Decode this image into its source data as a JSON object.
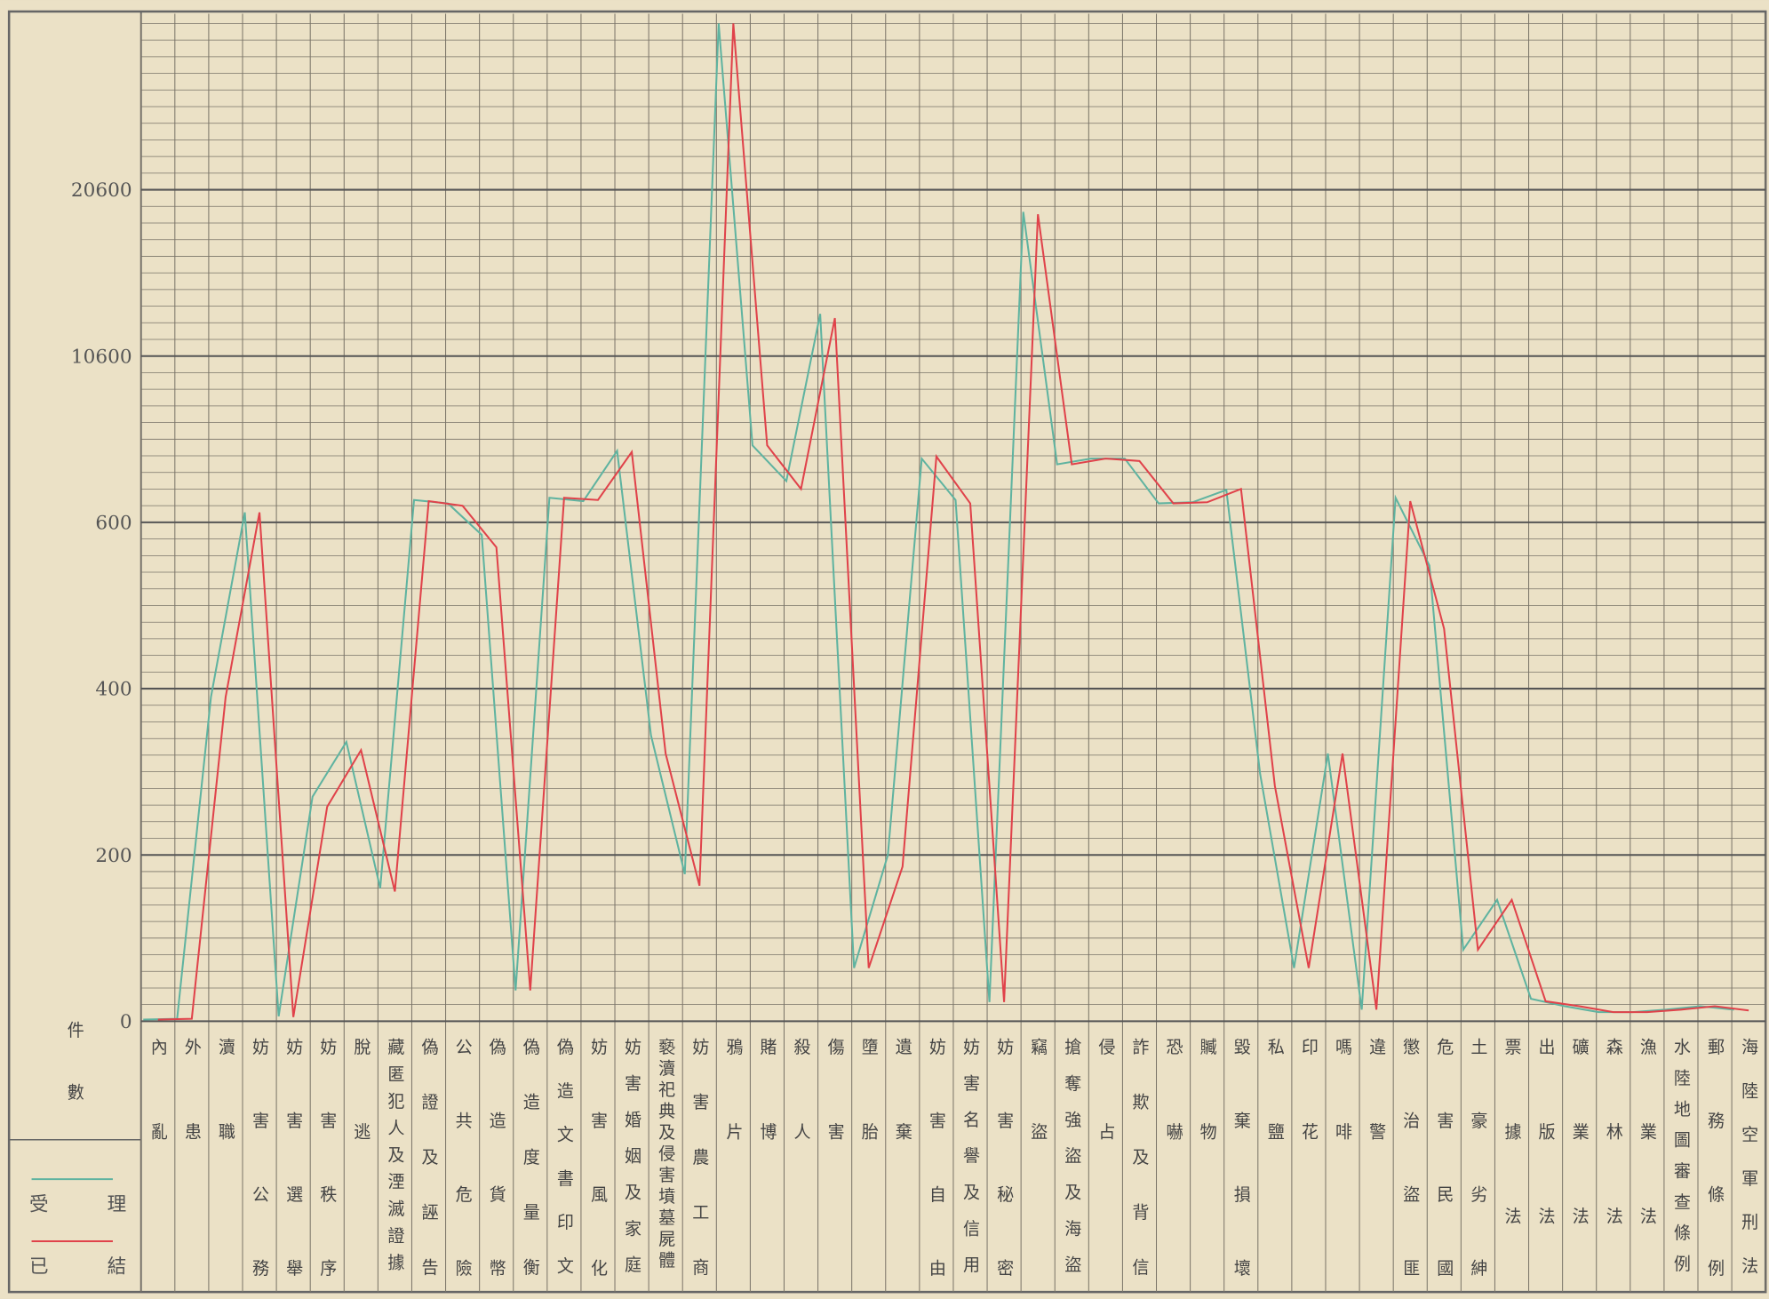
{
  "chart_data": {
    "type": "line",
    "y_label": "件數",
    "categories": [
      "內亂",
      "外患",
      "瀆職",
      "妨害公務",
      "妨害選舉",
      "妨害秩序",
      "脫逃",
      "藏匿犯人及湮滅證據",
      "偽證及誣告",
      "公共危險",
      "偽造貨幣",
      "偽造度量衡",
      "偽造文書印文",
      "妨害風化",
      "妨害婚姻及家庭",
      "褻瀆祀典及侵害墳墓屍體",
      "妨害農工商",
      "鴉片",
      "賭博",
      "殺人",
      "傷害",
      "墮胎",
      "遺棄",
      "妨害自由",
      "妨害名譽及信用",
      "妨害秘密",
      "竊盜",
      "搶奪強盜及海盜",
      "侵占",
      "詐欺及背信",
      "恐嚇",
      "贓物",
      "毀棄損壞",
      "私鹽",
      "印花",
      "嗎啡",
      "違警",
      "懲治盜匪",
      "危害民國",
      "土豪劣紳",
      "票據法",
      "出版法",
      "礦業法",
      "森林法",
      "漁業法",
      "水陸地圖審查條例",
      "郵務條例",
      "海陸空軍刑法"
    ],
    "series": [
      {
        "name": "受理",
        "color": "#5fb3a0",
        "values": [
          2,
          3,
          390,
          1200,
          6,
          270,
          336,
          160,
          1940,
          1740,
          585,
          37,
          2080,
          1875,
          4900,
          344,
          177,
          30600,
          5230,
          3080,
          13140,
          64,
          200,
          4430,
          1940,
          23,
          19270,
          4090,
          4430,
          4430,
          1740,
          1810,
          2550,
          297,
          64,
          322,
          14,
          2080,
          548,
          86,
          146,
          27,
          18,
          11,
          11,
          14,
          18,
          14
        ]
      },
      {
        "name": "已結",
        "color": "#e0424a",
        "values": [
          2,
          3,
          390,
          1200,
          5,
          258,
          326,
          156,
          1875,
          1600,
          570,
          37,
          2080,
          1940,
          4830,
          322,
          163,
          30600,
          5230,
          2610,
          12880,
          64,
          186,
          4560,
          1740,
          23,
          19130,
          4090,
          4430,
          4290,
          1740,
          1810,
          2610,
          283,
          64,
          322,
          14,
          1875,
          472,
          86,
          146,
          24,
          18,
          11,
          11,
          14,
          18,
          13
        ]
      }
    ],
    "ylim": [
      0,
      31000
    ],
    "yticks": [
      0,
      200,
      400,
      600,
      10600,
      20600
    ],
    "grid": true
  }
}
